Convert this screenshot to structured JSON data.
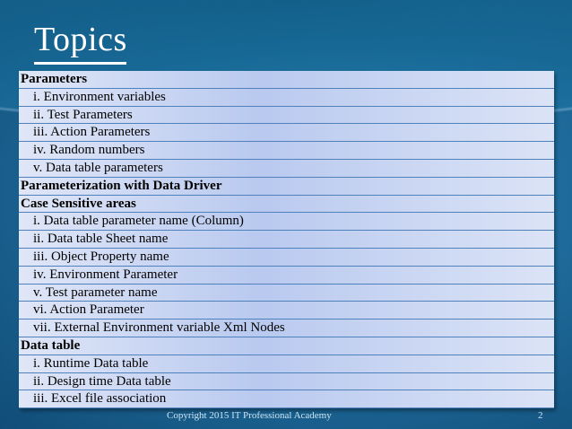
{
  "slide": {
    "title": "Topics",
    "rows": [
      {
        "text": "Parameters",
        "level": "heading"
      },
      {
        "text": "i. Environment variables",
        "level": "sub"
      },
      {
        "text": "ii. Test Parameters",
        "level": "sub"
      },
      {
        "text": "iii. Action Parameters",
        "level": "sub"
      },
      {
        "text": "iv. Random numbers",
        "level": "sub"
      },
      {
        "text": "v. Data table parameters",
        "level": "sub"
      },
      {
        "text": "Parameterization with Data Driver",
        "level": "heading"
      },
      {
        "text": "Case Sensitive areas",
        "level": "heading"
      },
      {
        "text": "i. Data table parameter name (Column)",
        "level": "sub"
      },
      {
        "text": "ii. Data table Sheet name",
        "level": "sub"
      },
      {
        "text": "iii. Object Property name",
        "level": "sub"
      },
      {
        "text": "iv. Environment Parameter",
        "level": "sub"
      },
      {
        "text": "v. Test parameter name",
        "level": "sub"
      },
      {
        "text": "vi. Action Parameter",
        "level": "sub"
      },
      {
        "text": "vii. External Environment variable Xml Nodes",
        "level": "sub"
      },
      {
        "text": "Data table",
        "level": "heading"
      },
      {
        "text": "i. Runtime Data table",
        "level": "sub"
      },
      {
        "text": "ii. Design time Data table",
        "level": "sub"
      },
      {
        "text": "iii. Excel file association",
        "level": "sub"
      }
    ],
    "footer": "Copyright 2015 IT Professional Academy",
    "page_number": "2"
  },
  "colors": {
    "row_border": "#4f81bd",
    "title": "#ffffff"
  }
}
